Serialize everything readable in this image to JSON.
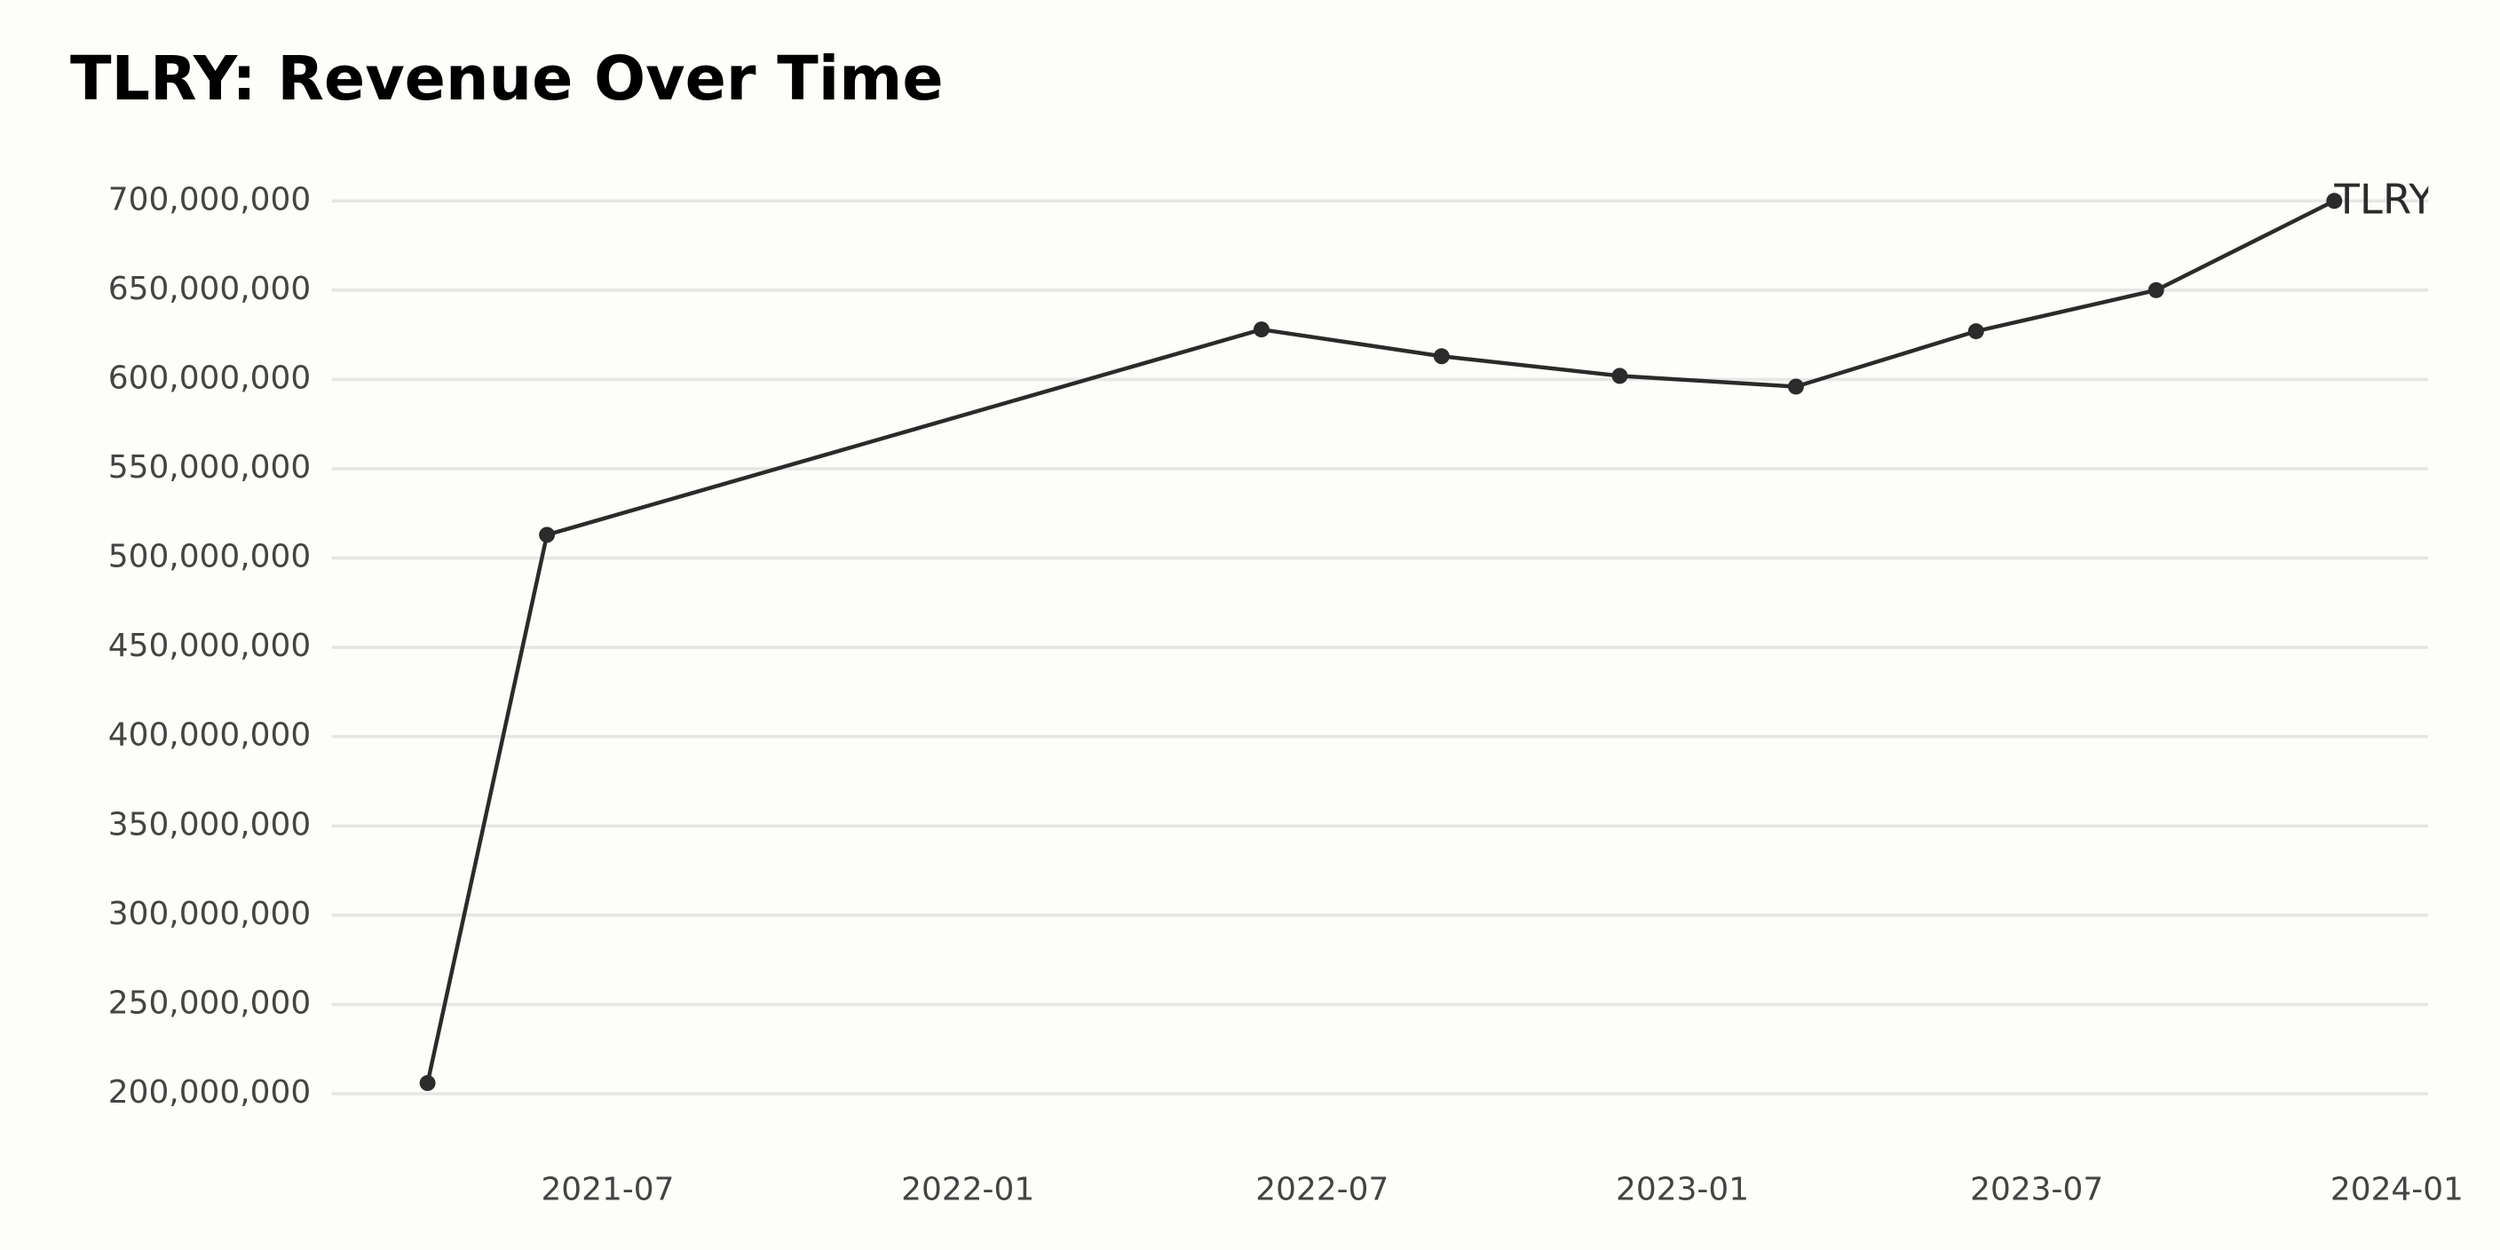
{
  "chart_data": {
    "type": "line",
    "title": "TLRY: Revenue Over Time",
    "x": [
      "2021-03-31",
      "2021-05-31",
      "2022-05-31",
      "2022-08-31",
      "2022-11-30",
      "2023-02-28",
      "2023-05-31",
      "2023-08-31",
      "2023-11-30"
    ],
    "series": [
      {
        "name": "TLRY",
        "color": "#2b2b2b",
        "values": [
          206000000,
          513000000,
          628000000,
          613000000,
          602000000,
          596000000,
          627000000,
          650000000,
          700000000
        ]
      }
    ],
    "xlim": [
      "2021-02-10",
      "2024-01-17"
    ],
    "xticks": [
      "2021-07",
      "2022-01",
      "2022-07",
      "2023-01",
      "2023-07",
      "2024-01"
    ],
    "ylim": [
      180000000,
      720000000
    ],
    "yticks": [
      {
        "value": 200000000,
        "label": "200,000,000"
      },
      {
        "value": 250000000,
        "label": "250,000,000"
      },
      {
        "value": 300000000,
        "label": "300,000,000"
      },
      {
        "value": 350000000,
        "label": "350,000,000"
      },
      {
        "value": 400000000,
        "label": "400,000,000"
      },
      {
        "value": 450000000,
        "label": "450,000,000"
      },
      {
        "value": 500000000,
        "label": "500,000,000"
      },
      {
        "value": 550000000,
        "label": "550,000,000"
      },
      {
        "value": 600000000,
        "label": "600,000,000"
      },
      {
        "value": 650000000,
        "label": "650,000,000"
      },
      {
        "value": 700000000,
        "label": "700,000,000"
      }
    ],
    "grid": true
  }
}
